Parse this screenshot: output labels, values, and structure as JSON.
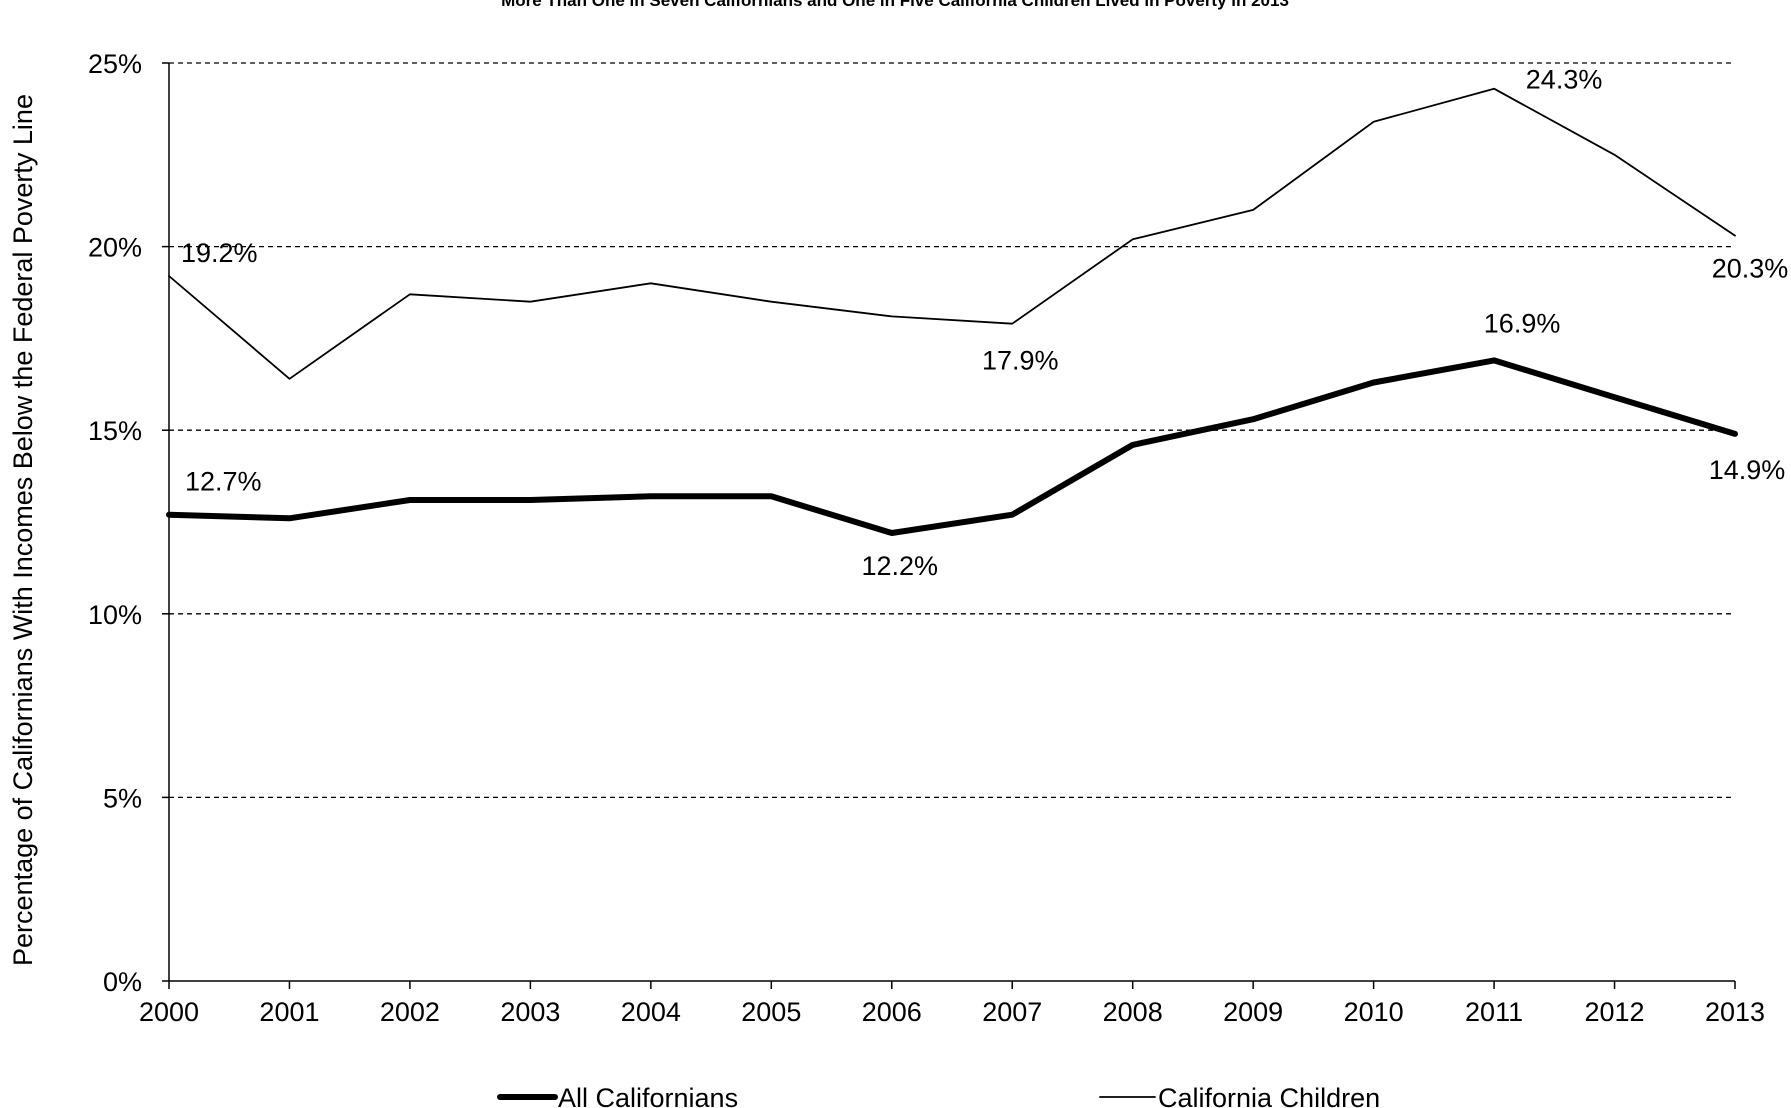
{
  "chart_data": {
    "type": "line",
    "title": "More Than One in Seven Californians and One in Five California Children Lived in Poverty in 2013",
    "ylabel": "Percentage of Californians With Incomes Below the Federal Poverty Line",
    "xlabel": "",
    "categories": [
      "2000",
      "2001",
      "2002",
      "2003",
      "2004",
      "2005",
      "2006",
      "2007",
      "2008",
      "2009",
      "2010",
      "2011",
      "2012",
      "2013"
    ],
    "ylim": [
      0,
      25
    ],
    "yticks": [
      0,
      5,
      10,
      15,
      20,
      25
    ],
    "ytick_labels": [
      "0%",
      "5%",
      "10%",
      "15%",
      "20%",
      "25%"
    ],
    "grid": "horizontal dashed",
    "legend_position": "bottom",
    "series": [
      {
        "name": "All Californians",
        "color": "#000000",
        "style": "thick",
        "values": [
          12.7,
          12.6,
          13.1,
          13.1,
          13.2,
          13.2,
          12.2,
          12.7,
          14.6,
          15.3,
          16.3,
          16.9,
          15.9,
          14.9
        ],
        "data_labels": [
          {
            "index": 0,
            "text": "12.7%"
          },
          {
            "index": 6,
            "text": "12.2%"
          },
          {
            "index": 11,
            "text": "16.9%"
          },
          {
            "index": 13,
            "text": "14.9%"
          }
        ]
      },
      {
        "name": "California Children",
        "color": "#000000",
        "style": "thin",
        "values": [
          19.2,
          16.4,
          18.7,
          18.5,
          19.0,
          18.5,
          18.1,
          17.9,
          20.2,
          21.0,
          23.4,
          24.3,
          22.5,
          20.3
        ],
        "data_labels": [
          {
            "index": 0,
            "text": "19.2%"
          },
          {
            "index": 7,
            "text": "17.9%"
          },
          {
            "index": 11,
            "text": "24.3%"
          },
          {
            "index": 13,
            "text": "20.3%"
          }
        ]
      }
    ]
  }
}
